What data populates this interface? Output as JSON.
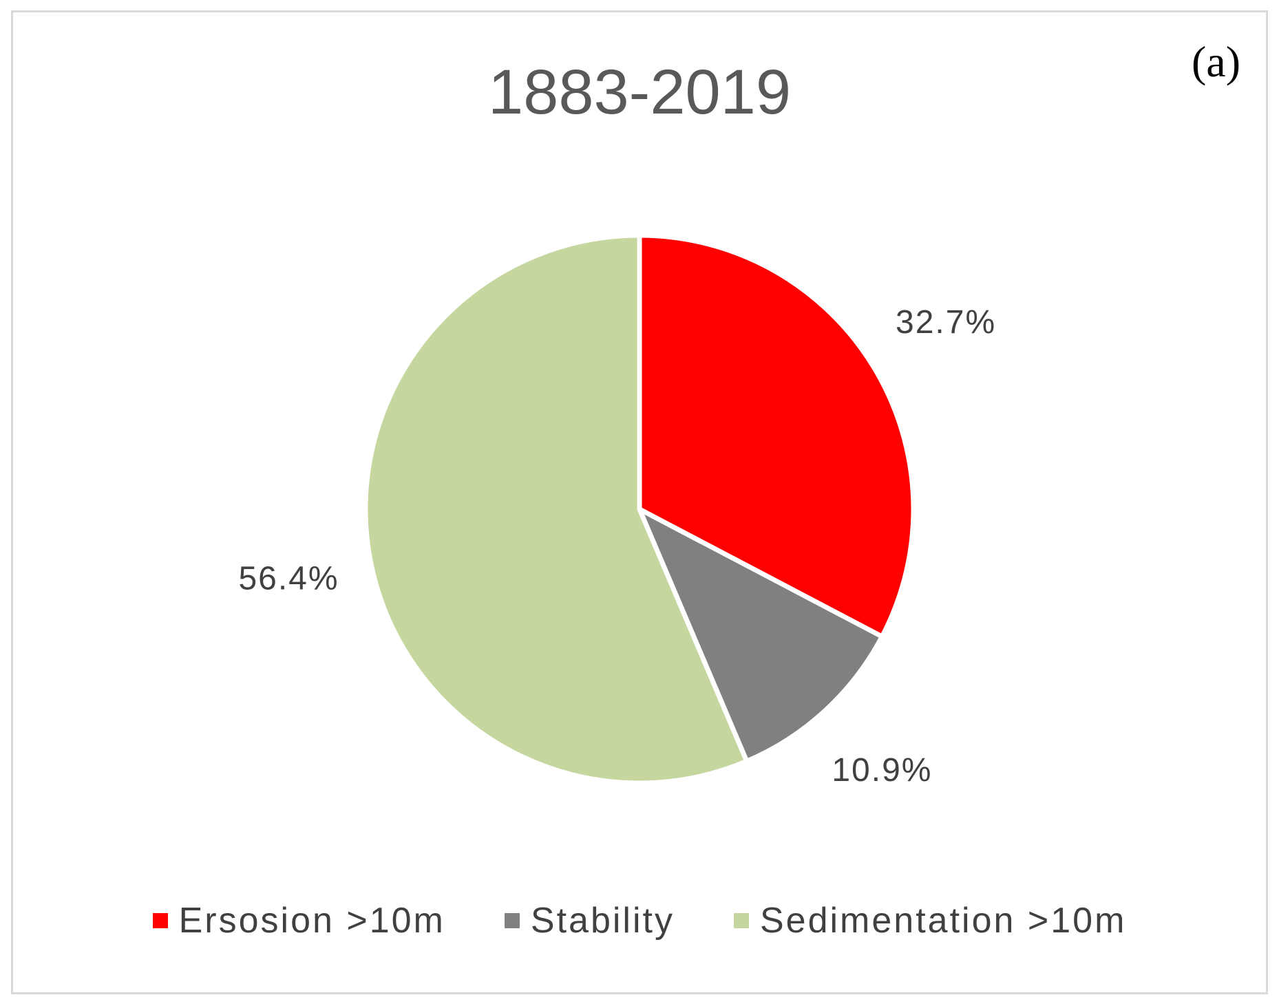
{
  "panel_label": "(a)",
  "chart_data": {
    "type": "pie",
    "title": "1883-2019",
    "start_angle_deg": 0,
    "direction": "clockwise",
    "slice_border_color": "#ffffff",
    "legend_position": "bottom",
    "slices": [
      {
        "name": "Ersosion >10m",
        "value": 32.7,
        "label": "32.7%",
        "color": "#ff0000"
      },
      {
        "name": "Stability",
        "value": 10.9,
        "label": "10.9%",
        "color": "#808080"
      },
      {
        "name": "Sedimentation >10m",
        "value": 56.4,
        "label": "56.4%",
        "color": "#c5d69e"
      }
    ]
  }
}
